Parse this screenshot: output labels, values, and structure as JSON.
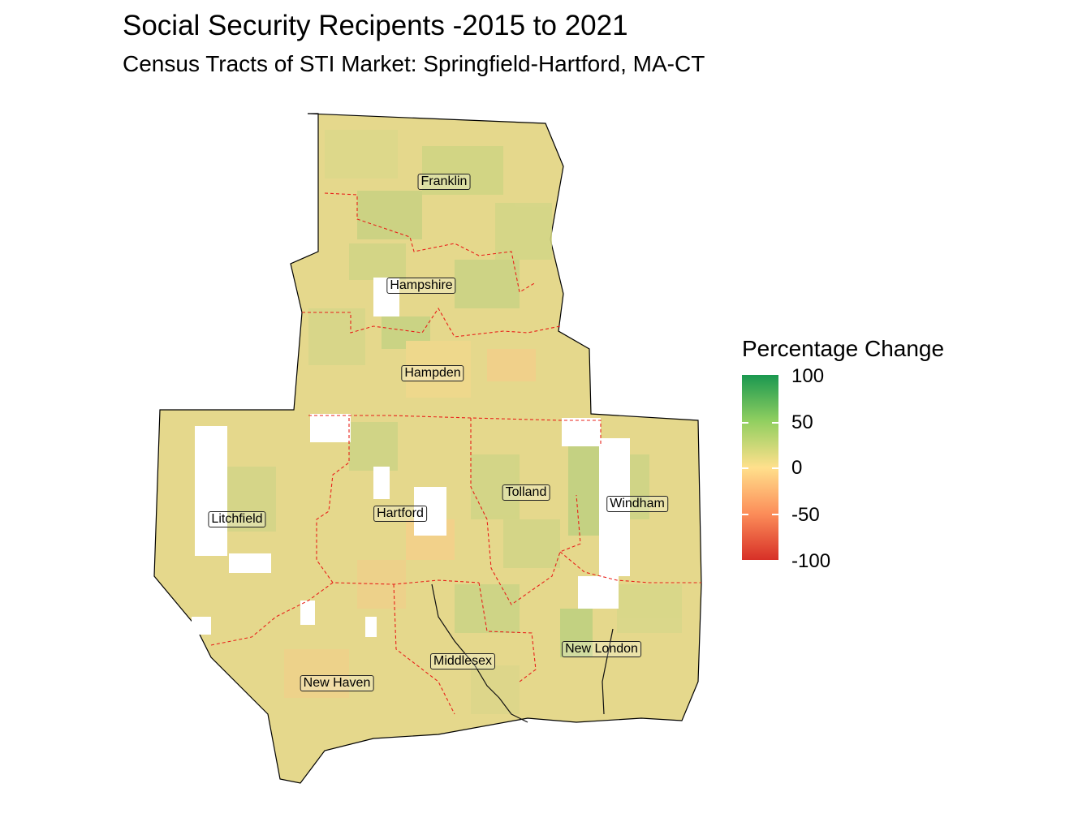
{
  "title": "Social Security Recipents -2015 to 2021",
  "subtitle": "Census Tracts of STI Market: Springfield-Hartford, MA-CT",
  "legend": {
    "title": "Percentage Change",
    "ticks": [
      "100",
      "50",
      "0",
      "-50",
      "-100"
    ],
    "colors": {
      "high": "#1a9850",
      "mid_high": "#91cf60",
      "mid": "#ffe08c",
      "mid_low": "#fc8d59",
      "low": "#d73027"
    },
    "range": [
      -100,
      100
    ]
  },
  "counties": [
    {
      "name": "Franklin"
    },
    {
      "name": "Hampshire"
    },
    {
      "name": "Hampden"
    },
    {
      "name": "Litchfield"
    },
    {
      "name": "Hartford"
    },
    {
      "name": "Tolland"
    },
    {
      "name": "Windham"
    },
    {
      "name": "New Haven"
    },
    {
      "name": "Middlesex"
    },
    {
      "name": "New London"
    }
  ],
  "county_border_color": "#e8201a",
  "no_data_color": "#ffffff"
}
